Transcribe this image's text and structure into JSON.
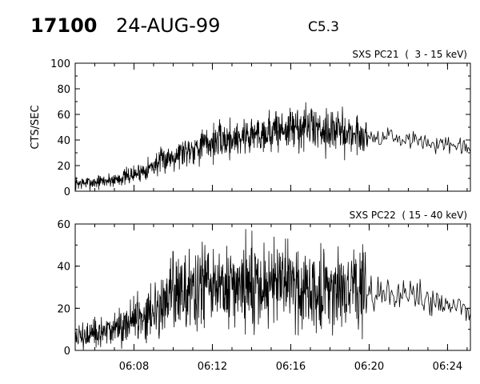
{
  "header": {
    "event_id": "17100",
    "date": "24-AUG-99",
    "flare_class": "C5.3"
  },
  "chart_data": [
    {
      "type": "line",
      "title": "SXS PC21  (  3 - 15 keV)",
      "ylabel": "CTS/SEC",
      "xlabel": "",
      "x_unit": "UT time",
      "xlim": [
        "06:05:00",
        "06:25:10"
      ],
      "ylim": [
        0,
        100
      ],
      "yticks": [
        0,
        20,
        40,
        60,
        80,
        100
      ],
      "xticks": [
        "06:08",
        "06:12",
        "06:16",
        "06:20",
        "06:24"
      ],
      "grid": false,
      "series": [
        {
          "noise": "high-cadence noisy counts; envelope below is approximate",
          "x": [
            "06:05:00",
            "06:06:00",
            "06:07:00",
            "06:08:00",
            "06:09:00",
            "06:10:00",
            "06:11:00",
            "06:12:00",
            "06:13:00",
            "06:14:00",
            "06:15:00",
            "06:16:00",
            "06:17:00",
            "06:18:00",
            "06:19:00",
            "06:20:00",
            "06:21:00",
            "06:22:00",
            "06:23:00",
            "06:24:00",
            "06:25:10"
          ],
          "y": [
            6,
            7,
            9,
            13,
            20,
            28,
            34,
            38,
            41,
            44,
            47,
            49,
            50,
            48,
            45,
            43,
            42,
            40,
            38,
            35,
            33
          ]
        }
      ]
    },
    {
      "type": "line",
      "title": "SXS PC22  ( 15 - 40 keV)",
      "ylabel": "",
      "xlabel": "",
      "x_unit": "UT time",
      "xlim": [
        "06:05:00",
        "06:25:10"
      ],
      "ylim": [
        0,
        60
      ],
      "yticks": [
        0,
        20,
        40,
        60
      ],
      "xticks": [
        "06:08",
        "06:12",
        "06:16",
        "06:20",
        "06:24"
      ],
      "grid": false,
      "series": [
        {
          "noise": "high-cadence noisy counts; envelope below is approximate",
          "x": [
            "06:05:00",
            "06:06:00",
            "06:07:00",
            "06:08:00",
            "06:09:00",
            "06:10:00",
            "06:11:00",
            "06:12:00",
            "06:13:00",
            "06:14:00",
            "06:15:00",
            "06:16:00",
            "06:17:00",
            "06:18:00",
            "06:19:00",
            "06:20:00",
            "06:21:00",
            "06:22:00",
            "06:23:00",
            "06:24:00",
            "06:25:10"
          ],
          "y": [
            6,
            7,
            10,
            15,
            20,
            27,
            29,
            29,
            30,
            31,
            31,
            31,
            30,
            30,
            29,
            28,
            27,
            26,
            24,
            21,
            18
          ]
        }
      ]
    }
  ]
}
